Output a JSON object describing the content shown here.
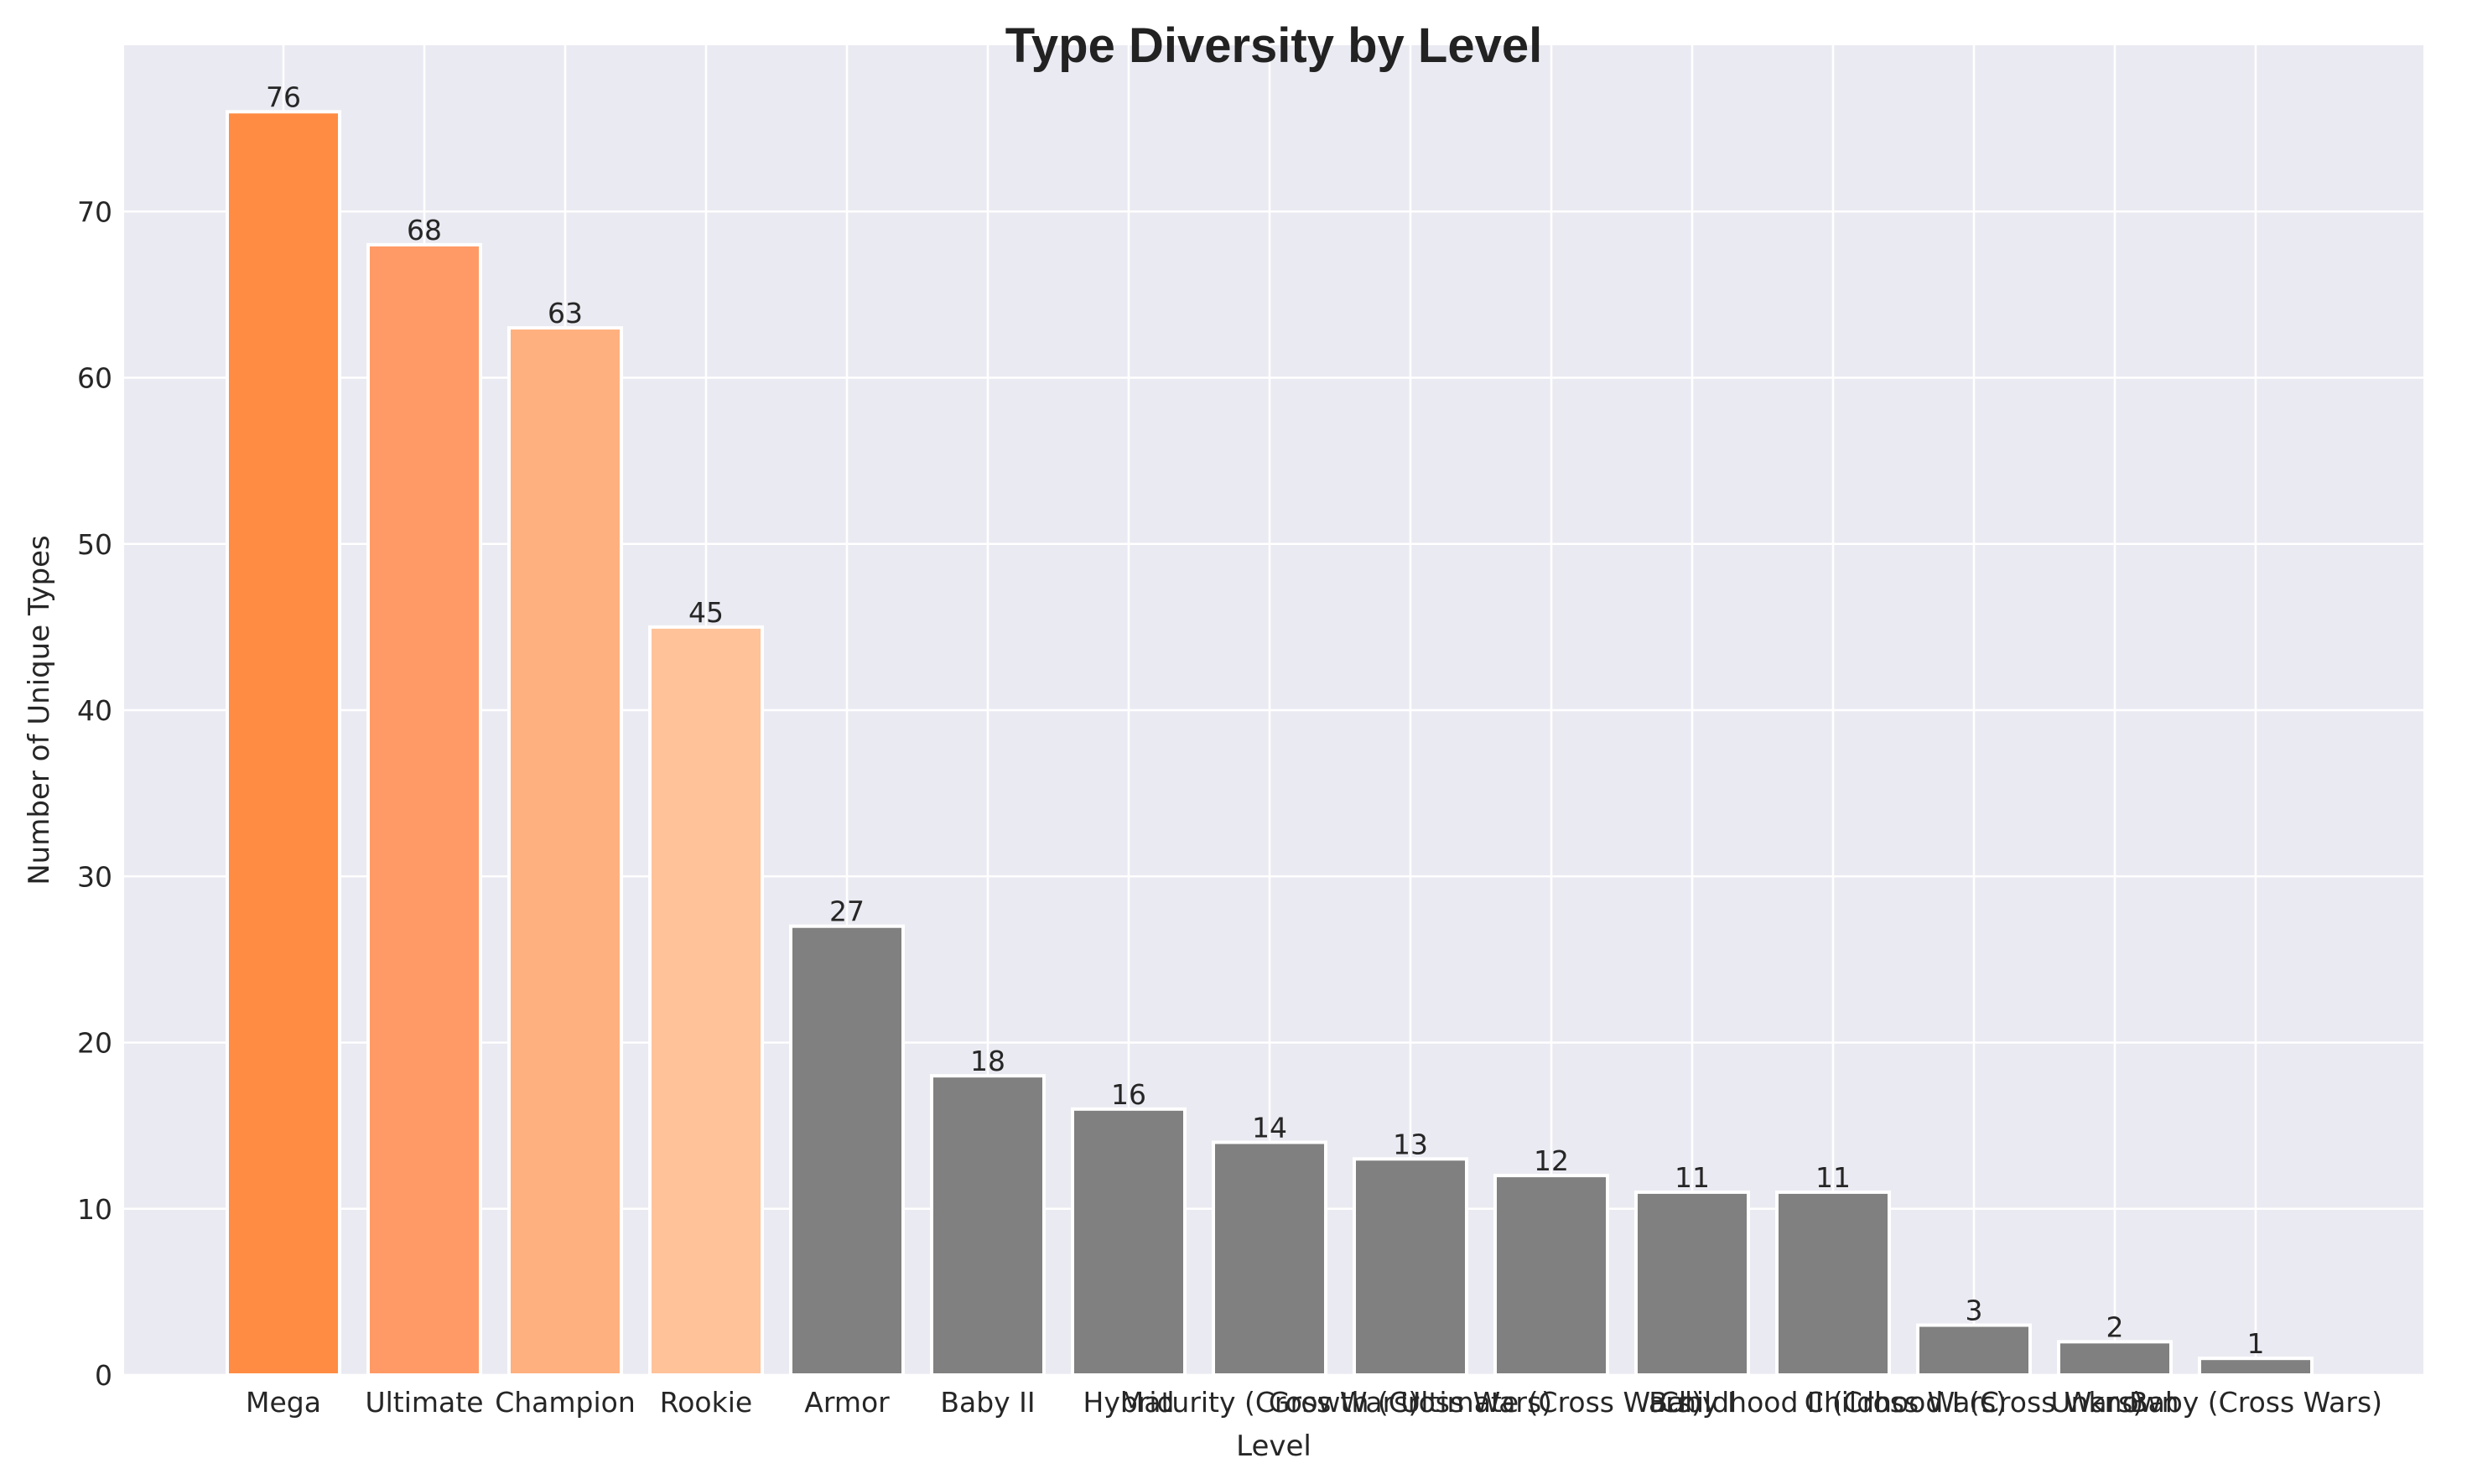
{
  "chart_data": {
    "type": "bar",
    "title": "Type Diversity by Level",
    "xlabel": "Level",
    "ylabel": "Number of Unique Types",
    "categories": [
      "Mega",
      "Ultimate",
      "Champion",
      "Rookie",
      "Armor",
      "Baby II",
      "Hybrid",
      "Maturity (Cross Wars)",
      "Growth (Cross Wars)",
      "Ultimate (Cross Wars)",
      "Baby I",
      "Childhood II (Cross Wars)",
      "Childhood I (Cross Wars)",
      "Unknown",
      "Baby (Cross Wars)"
    ],
    "values": [
      76,
      68,
      63,
      45,
      27,
      18,
      16,
      14,
      13,
      12,
      11,
      11,
      3,
      2,
      1
    ],
    "bar_colors": [
      "#FF8C42",
      "#FF9A66",
      "#FFB07F",
      "#FFC299",
      "#808080",
      "#808080",
      "#808080",
      "#808080",
      "#808080",
      "#808080",
      "#808080",
      "#808080",
      "#808080",
      "#808080",
      "#808080"
    ],
    "ylim": [
      0,
      80
    ],
    "yticks": [
      0,
      10,
      20,
      30,
      40,
      50,
      60,
      70
    ],
    "grid": true,
    "legend": "none",
    "background_color": "#EAEAF2",
    "grid_color": "#FFFFFF"
  }
}
